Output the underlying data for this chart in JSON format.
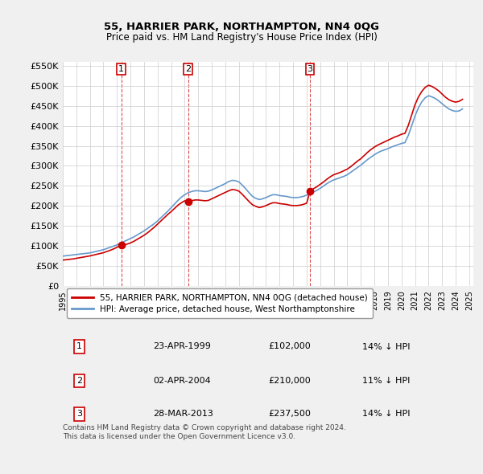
{
  "title": "55, HARRIER PARK, NORTHAMPTON, NN4 0QG",
  "subtitle": "Price paid vs. HM Land Registry's House Price Index (HPI)",
  "sale_dates_num": [
    1999.31,
    2004.25,
    2013.24
  ],
  "sale_prices": [
    102000,
    210000,
    237500
  ],
  "sale_labels": [
    "1",
    "2",
    "3"
  ],
  "vline_color": "#cc0000",
  "sale_marker_color": "#cc0000",
  "hpi_line_color": "#6699cc",
  "price_line_color": "#cc0000",
  "grid_color": "#cccccc",
  "background_color": "#f0f0f0",
  "plot_bg_color": "#ffffff",
  "ylim": [
    0,
    560000
  ],
  "yticks": [
    0,
    50000,
    100000,
    150000,
    200000,
    250000,
    300000,
    350000,
    400000,
    450000,
    500000,
    550000
  ],
  "ytick_labels": [
    "£0",
    "£50K",
    "£100K",
    "£150K",
    "£200K",
    "£250K",
    "£300K",
    "£350K",
    "£400K",
    "£450K",
    "£500K",
    "£550K"
  ],
  "xtick_years": [
    1995,
    1996,
    1997,
    1998,
    1999,
    2000,
    2001,
    2002,
    2003,
    2004,
    2005,
    2006,
    2007,
    2008,
    2009,
    2010,
    2011,
    2012,
    2013,
    2014,
    2015,
    2016,
    2017,
    2018,
    2019,
    2020,
    2021,
    2022,
    2023,
    2024,
    2025
  ],
  "legend_line1": "55, HARRIER PARK, NORTHAMPTON, NN4 0QG (detached house)",
  "legend_line2": "HPI: Average price, detached house, West Northamptonshire",
  "table_data": [
    [
      "1",
      "23-APR-1999",
      "£102,000",
      "14% ↓ HPI"
    ],
    [
      "2",
      "02-APR-2004",
      "£210,000",
      "11% ↓ HPI"
    ],
    [
      "3",
      "28-MAR-2013",
      "£237,500",
      "14% ↓ HPI"
    ]
  ],
  "footer": "Contains HM Land Registry data © Crown copyright and database right 2024.\nThis data is licensed under the Open Government Licence v3.0.",
  "hpi_data_x": [
    1995.0,
    1995.25,
    1995.5,
    1995.75,
    1996.0,
    1996.25,
    1996.5,
    1996.75,
    1997.0,
    1997.25,
    1997.5,
    1997.75,
    1998.0,
    1998.25,
    1998.5,
    1998.75,
    1999.0,
    1999.25,
    1999.5,
    1999.75,
    2000.0,
    2000.25,
    2000.5,
    2000.75,
    2001.0,
    2001.25,
    2001.5,
    2001.75,
    2002.0,
    2002.25,
    2002.5,
    2002.75,
    2003.0,
    2003.25,
    2003.5,
    2003.75,
    2004.0,
    2004.25,
    2004.5,
    2004.75,
    2005.0,
    2005.25,
    2005.5,
    2005.75,
    2006.0,
    2006.25,
    2006.5,
    2006.75,
    2007.0,
    2007.25,
    2007.5,
    2007.75,
    2008.0,
    2008.25,
    2008.5,
    2008.75,
    2009.0,
    2009.25,
    2009.5,
    2009.75,
    2010.0,
    2010.25,
    2010.5,
    2010.75,
    2011.0,
    2011.25,
    2011.5,
    2011.75,
    2012.0,
    2012.25,
    2012.5,
    2012.75,
    2013.0,
    2013.25,
    2013.5,
    2013.75,
    2014.0,
    2014.25,
    2014.5,
    2014.75,
    2015.0,
    2015.25,
    2015.5,
    2015.75,
    2016.0,
    2016.25,
    2016.5,
    2016.75,
    2017.0,
    2017.25,
    2017.5,
    2017.75,
    2018.0,
    2018.25,
    2018.5,
    2018.75,
    2019.0,
    2019.25,
    2019.5,
    2019.75,
    2020.0,
    2020.25,
    2020.5,
    2020.75,
    2021.0,
    2021.25,
    2021.5,
    2021.75,
    2022.0,
    2022.25,
    2022.5,
    2022.75,
    2023.0,
    2023.25,
    2023.5,
    2023.75,
    2024.0,
    2024.25,
    2024.5
  ],
  "hpi_data_y": [
    75000,
    76000,
    77000,
    78000,
    79000,
    80000,
    81000,
    82000,
    83000,
    85000,
    87000,
    89000,
    91000,
    94000,
    97000,
    100000,
    103000,
    107000,
    111000,
    115000,
    119000,
    123000,
    128000,
    133000,
    138000,
    144000,
    150000,
    156000,
    163000,
    171000,
    179000,
    187000,
    196000,
    205000,
    214000,
    222000,
    228000,
    233000,
    236000,
    238000,
    238000,
    237000,
    236000,
    237000,
    240000,
    244000,
    248000,
    252000,
    256000,
    261000,
    264000,
    263000,
    260000,
    252000,
    243000,
    233000,
    224000,
    219000,
    216000,
    218000,
    221000,
    225000,
    228000,
    228000,
    226000,
    225000,
    224000,
    222000,
    221000,
    221000,
    222000,
    224000,
    227000,
    231000,
    235000,
    239000,
    244000,
    250000,
    256000,
    261000,
    265000,
    268000,
    271000,
    274000,
    278000,
    284000,
    290000,
    296000,
    302000,
    309000,
    316000,
    322000,
    328000,
    333000,
    337000,
    340000,
    343000,
    347000,
    350000,
    353000,
    356000,
    358000,
    376000,
    400000,
    425000,
    445000,
    460000,
    470000,
    475000,
    472000,
    468000,
    462000,
    455000,
    448000,
    442000,
    438000,
    436000,
    437000,
    442000
  ],
  "price_line_x": [
    1995.0,
    1995.25,
    1995.5,
    1995.75,
    1996.0,
    1996.25,
    1996.5,
    1996.75,
    1997.0,
    1997.25,
    1997.5,
    1997.75,
    1998.0,
    1998.25,
    1998.5,
    1998.75,
    1999.0,
    1999.25,
    1999.5,
    1999.75,
    2000.0,
    2000.25,
    2000.5,
    2000.75,
    2001.0,
    2001.25,
    2001.5,
    2001.75,
    2002.0,
    2002.25,
    2002.5,
    2002.75,
    2003.0,
    2003.25,
    2003.5,
    2003.75,
    2004.0,
    2004.25,
    2004.5,
    2004.75,
    2005.0,
    2005.25,
    2005.5,
    2005.75,
    2006.0,
    2006.25,
    2006.5,
    2006.75,
    2007.0,
    2007.25,
    2007.5,
    2007.75,
    2008.0,
    2008.25,
    2008.5,
    2008.75,
    2009.0,
    2009.25,
    2009.5,
    2009.75,
    2010.0,
    2010.25,
    2010.5,
    2010.75,
    2011.0,
    2011.25,
    2011.5,
    2011.75,
    2012.0,
    2012.25,
    2012.5,
    2012.75,
    2013.0,
    2013.25,
    2013.5,
    2013.75,
    2014.0,
    2014.25,
    2014.5,
    2014.75,
    2015.0,
    2015.25,
    2015.5,
    2015.75,
    2016.0,
    2016.25,
    2016.5,
    2016.75,
    2017.0,
    2017.25,
    2017.5,
    2017.75,
    2018.0,
    2018.25,
    2018.5,
    2018.75,
    2019.0,
    2019.25,
    2019.5,
    2019.75,
    2020.0,
    2020.25,
    2020.5,
    2020.75,
    2021.0,
    2021.25,
    2021.5,
    2021.75,
    2022.0,
    2022.25,
    2022.5,
    2022.75,
    2023.0,
    2023.25,
    2023.5,
    2023.75,
    2024.0,
    2024.25,
    2024.5
  ],
  "price_line_y": [
    65000,
    66000,
    67000,
    68000,
    69500,
    71000,
    72500,
    74000,
    75500,
    77500,
    79500,
    81500,
    83500,
    86500,
    89500,
    93000,
    97000,
    101000,
    102000,
    105000,
    108000,
    112000,
    117000,
    122000,
    127000,
    133000,
    140000,
    147000,
    155000,
    163000,
    171000,
    179000,
    186000,
    194000,
    202000,
    208000,
    213000,
    210000,
    213000,
    215000,
    215000,
    214000,
    213000,
    214000,
    218000,
    222000,
    226000,
    230000,
    234000,
    238000,
    241000,
    240000,
    237000,
    229000,
    220000,
    211000,
    203000,
    199000,
    196000,
    198000,
    201000,
    205000,
    208000,
    208000,
    206000,
    205000,
    204000,
    202000,
    201000,
    201000,
    202000,
    204000,
    207000,
    237500,
    243000,
    248000,
    254000,
    260000,
    267000,
    273000,
    278000,
    281000,
    284000,
    288000,
    292000,
    298000,
    305000,
    312000,
    318000,
    326000,
    334000,
    341000,
    347000,
    352000,
    356000,
    360000,
    364000,
    368000,
    372000,
    375000,
    379000,
    381000,
    401000,
    427000,
    453000,
    472000,
    486000,
    496000,
    501000,
    498000,
    493000,
    487000,
    479000,
    471000,
    465000,
    461000,
    459000,
    461000,
    466000
  ]
}
